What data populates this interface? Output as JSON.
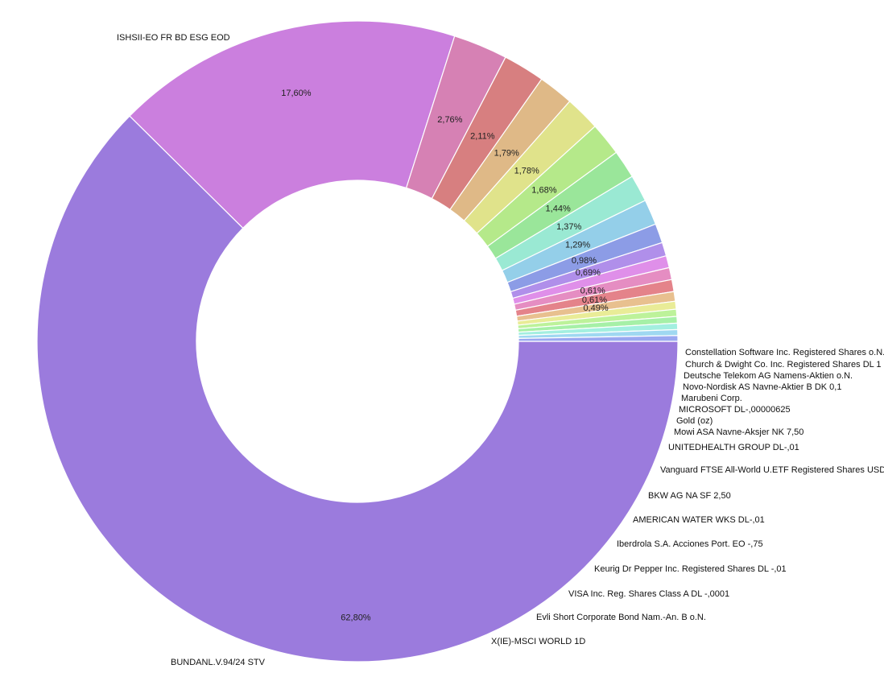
{
  "chart_data": {
    "type": "pie",
    "title": "",
    "donut": true,
    "legend": "none",
    "labels_position": "outside",
    "slices": [
      {
        "label": "ISHSII-EO FR BD ESG EOD",
        "value": 62.8,
        "pct_text": "62,80%",
        "color": "#9b7bdd"
      },
      {
        "label": "BUNDANL.V.94/24      STV",
        "value": 17.6,
        "pct_text": "17,60%",
        "color": "#cb7fde"
      },
      {
        "label": "X(IE)-MSCI WORLD 1D",
        "value": 2.76,
        "pct_text": "2,76%",
        "color": "#d681b4"
      },
      {
        "label": "Evli Short Corporate Bond Nam.-An. B o.N.",
        "value": 2.11,
        "pct_text": "2,11%",
        "color": "#d77f80"
      },
      {
        "label": "VISA Inc. Reg. Shares Class A DL -,0001",
        "value": 1.79,
        "pct_text": "1,79%",
        "color": "#dfb987"
      },
      {
        "label": "Keurig Dr Pepper Inc. Registered Shares DL -,01",
        "value": 1.78,
        "pct_text": "1,78%",
        "color": "#e0e38b"
      },
      {
        "label": "Iberdrola S.A. Acciones Port. EO -,75",
        "value": 1.68,
        "pct_text": "1,68%",
        "color": "#b5e98a"
      },
      {
        "label": "AMERICAN WATER WKS DL-,01",
        "value": 1.44,
        "pct_text": "1,44%",
        "color": "#9ae69a"
      },
      {
        "label": "BKW AG NA SF 2,50",
        "value": 1.37,
        "pct_text": "1,37%",
        "color": "#9ae9d3"
      },
      {
        "label": "Vanguard FTSE All-World U.ETF Registered Shares USD D",
        "value": 1.29,
        "pct_text": "1,29%",
        "color": "#94cfe9"
      },
      {
        "label": "UNITEDHEALTH GROUP DL-,01",
        "value": 0.98,
        "pct_text": "0,98%",
        "color": "#8c9ce6"
      },
      {
        "label": "Mowi ASA Navne-Aksjer NK 7,50",
        "value": 0.69,
        "pct_text": "0,69%",
        "color": "#b08fea"
      },
      {
        "label": "Gold (oz)",
        "value": 0.61,
        "pct_text": "",
        "color": "#df8fe9"
      },
      {
        "label": "MICROSOFT    DL-,00000625",
        "value": 0.61,
        "pct_text": "0,61%",
        "color": "#e58dc2"
      },
      {
        "label": "Marubeni Corp.",
        "value": 0.61,
        "pct_text": "0,61%",
        "color": "#e4838a"
      },
      {
        "label": "Novo-Nordisk AS Navne-Aktier B DK 0,1",
        "value": 0.49,
        "pct_text": "0,49%",
        "color": "#e8c08f"
      },
      {
        "label": "Deutsche Telekom AG Namens-Aktien o.N.",
        "value": 0.4,
        "pct_text": "",
        "color": "#e9ec97"
      },
      {
        "label": "",
        "value": 0.36,
        "pct_text": "",
        "color": "#bdf29a"
      },
      {
        "label": "Church & Dwight Co. Inc. Registered Shares DL 1",
        "value": 0.34,
        "pct_text": "",
        "color": "#a6f0a7"
      },
      {
        "label": "",
        "value": 0.32,
        "pct_text": "",
        "color": "#a3efe0"
      },
      {
        "label": "Constellation Software Inc. Registered Shares o.N.",
        "value": 0.3,
        "pct_text": "",
        "color": "#9fd8f1"
      },
      {
        "label": "",
        "value": 0.29,
        "pct_text": "",
        "color": "#9aa8f0"
      }
    ]
  }
}
